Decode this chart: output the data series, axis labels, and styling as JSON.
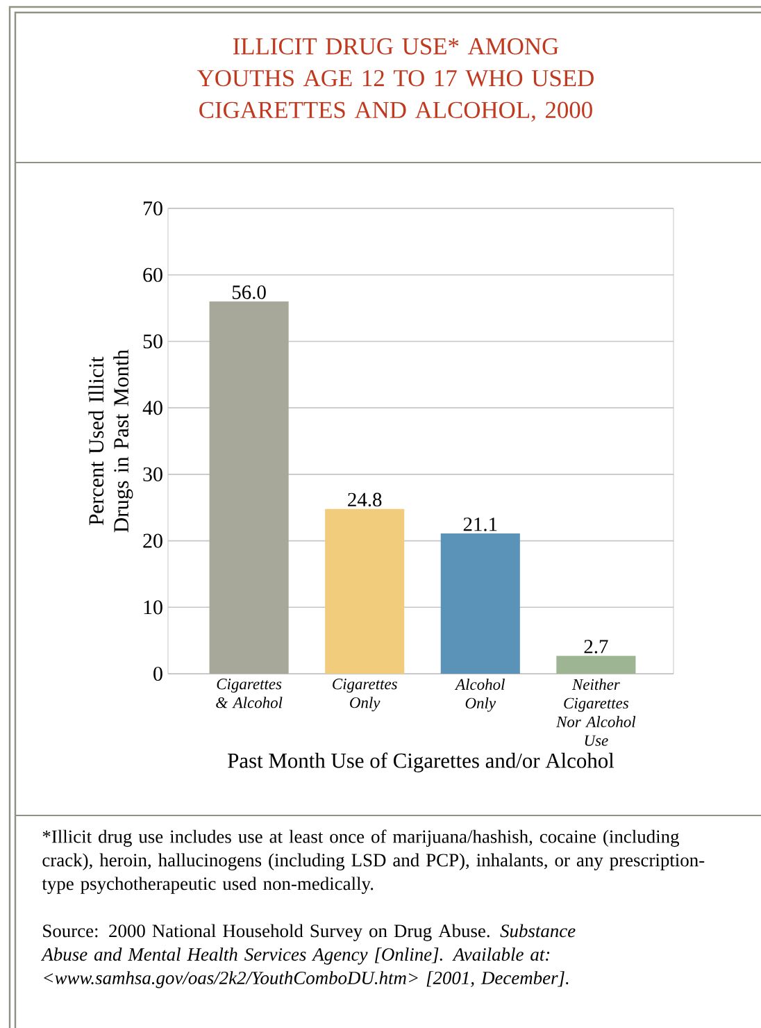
{
  "chart_data": {
    "type": "bar",
    "title": "ILLICIT DRUG USE* AMONG YOUTHS AGE 12 TO 17 WHO USED CIGARETTES AND ALCOHOL, 2000",
    "xlabel": "Past Month Use of Cigarettes and/or Alcohol",
    "ylabel": "Percent Used Illicit Drugs in Past Month",
    "categories": [
      "Cigarettes & Alcohol",
      "Cigarettes Only",
      "Alcohol Only",
      "Neither Cigarettes Nor Alcohol Use"
    ],
    "values": [
      56.0,
      24.8,
      21.1,
      2.7
    ],
    "colors": [
      "#a8a89a",
      "#f1cc7c",
      "#5b93b8",
      "#9db593"
    ],
    "ylim": [
      0,
      70
    ],
    "yticks": [
      0,
      10,
      20,
      30,
      40,
      50,
      60,
      70
    ],
    "value_labels": [
      "56.0",
      "24.8",
      "21.1",
      "2.7"
    ],
    "grid": "y",
    "annotations": [
      "*Illicit drug use includes use at least once of marijuana/hashish, cocaine (including crack), heroin, hallucinogens (including LSD and PCP), inhalants, or any prescription-type psychotherapeutic used non-medically.",
      "Source: 2000 National Household Survey on Drug Abuse. *Substance Abuse and Mental Health Services Agency [Online]. Available at: <www.samhsa.gov/oas/2k2/YouthComboDU.htm> [2001, December].*"
    ]
  }
}
